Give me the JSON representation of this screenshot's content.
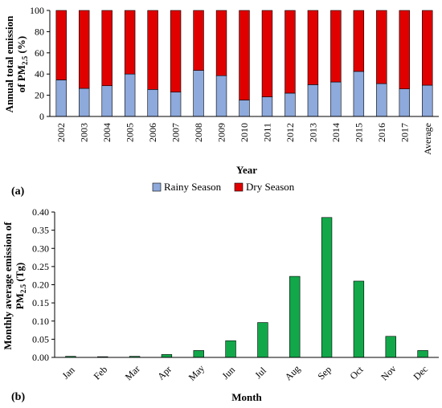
{
  "chart_data": [
    {
      "type": "bar",
      "stacked": true,
      "panel_label": "(a)",
      "title": "",
      "xlabel": "Year",
      "ylabel_line1": "Annual total emission",
      "ylabel_line2_prefix": "of PM",
      "ylabel_line2_sub": "2.5",
      "ylabel_line2_suffix": " (%)",
      "ylim": [
        0,
        100
      ],
      "yticks": [
        "0",
        "20",
        "40",
        "60",
        "80",
        "100"
      ],
      "categories": [
        "2002",
        "2003",
        "2004",
        "2005",
        "2006",
        "2007",
        "2008",
        "2009",
        "2010",
        "2011",
        "2012",
        "2013",
        "2014",
        "2015",
        "2016",
        "2017",
        "Average"
      ],
      "series": [
        {
          "name": "Rainy Season",
          "color": "#8EA9DB",
          "values": [
            34.5,
            26.5,
            29,
            40,
            25.5,
            23,
            43.5,
            38.5,
            15.5,
            18.5,
            22,
            30,
            32.5,
            42.5,
            31,
            26,
            29.5
          ]
        },
        {
          "name": "Dry Season",
          "color": "#E00000",
          "values": [
            65.5,
            73.5,
            71,
            60,
            74.5,
            77,
            56.5,
            61.5,
            84.5,
            81.5,
            78,
            70,
            67.5,
            57.5,
            69,
            74,
            70.5
          ]
        }
      ],
      "legend_position": "bottom-center"
    },
    {
      "type": "bar",
      "panel_label": "(b)",
      "title": "",
      "xlabel": "Month",
      "ylabel_line1": "Monthly average emission of",
      "ylabel_line2_prefix": "PM",
      "ylabel_line2_sub": "2.5",
      "ylabel_line2_suffix": " (Tg)",
      "ylim": [
        0,
        0.4
      ],
      "yticks": [
        "0.00",
        "0.05",
        "0.10",
        "0.15",
        "0.20",
        "0.25",
        "0.30",
        "0.35",
        "0.40"
      ],
      "categories": [
        "Jan",
        "Feb",
        "Mar",
        "Apr",
        "May",
        "Jun",
        "Jul",
        "Aug",
        "Sep",
        "Oct",
        "Nov",
        "Dec"
      ],
      "color": "#12A84A",
      "values": [
        0.003,
        0.002,
        0.003,
        0.008,
        0.019,
        0.046,
        0.096,
        0.223,
        0.385,
        0.21,
        0.058,
        0.019
      ]
    }
  ]
}
